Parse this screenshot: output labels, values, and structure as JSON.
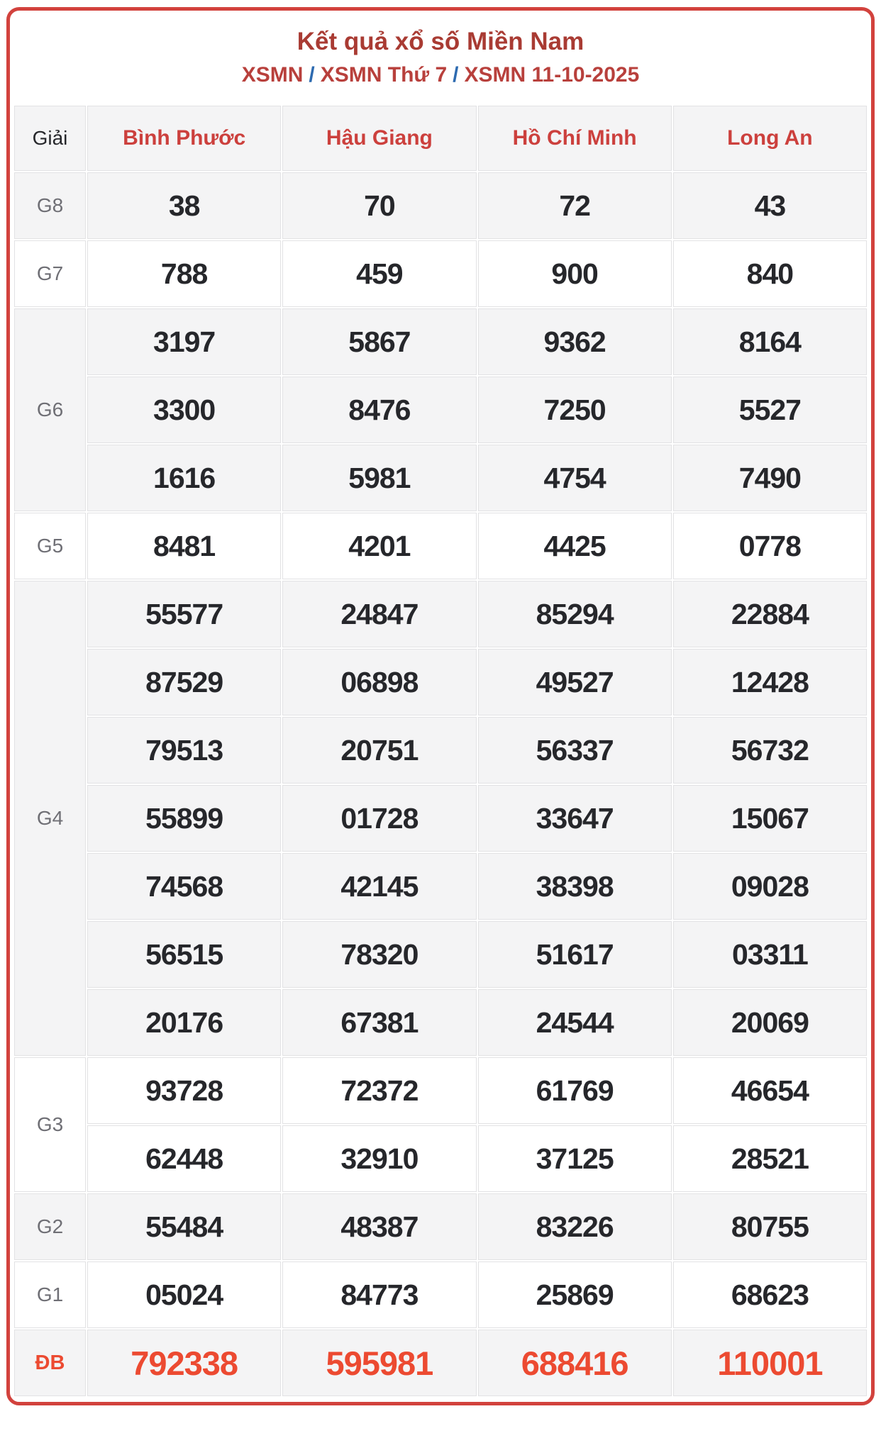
{
  "header": {
    "title": "Kết quả xổ số Miền Nam",
    "subtitle_parts": [
      "XSMN",
      "XSMN Thứ 7",
      "XSMN 11-10-2025"
    ],
    "subtitle_separator": "/"
  },
  "table": {
    "corner_label": "Giải",
    "columns": [
      "Bình Phước",
      "Hậu Giang",
      "Hồ Chí Minh",
      "Long An"
    ],
    "groups": [
      {
        "label": "G8",
        "shade": "gray",
        "special": false,
        "rows": [
          [
            "38",
            "70",
            "72",
            "43"
          ]
        ]
      },
      {
        "label": "G7",
        "shade": "white",
        "special": false,
        "rows": [
          [
            "788",
            "459",
            "900",
            "840"
          ]
        ]
      },
      {
        "label": "G6",
        "shade": "gray",
        "special": false,
        "rows": [
          [
            "3197",
            "5867",
            "9362",
            "8164"
          ],
          [
            "3300",
            "8476",
            "7250",
            "5527"
          ],
          [
            "1616",
            "5981",
            "4754",
            "7490"
          ]
        ]
      },
      {
        "label": "G5",
        "shade": "white",
        "special": false,
        "rows": [
          [
            "8481",
            "4201",
            "4425",
            "0778"
          ]
        ]
      },
      {
        "label": "G4",
        "shade": "gray",
        "special": false,
        "rows": [
          [
            "55577",
            "24847",
            "85294",
            "22884"
          ],
          [
            "87529",
            "06898",
            "49527",
            "12428"
          ],
          [
            "79513",
            "20751",
            "56337",
            "56732"
          ],
          [
            "55899",
            "01728",
            "33647",
            "15067"
          ],
          [
            "74568",
            "42145",
            "38398",
            "09028"
          ],
          [
            "56515",
            "78320",
            "51617",
            "03311"
          ],
          [
            "20176",
            "67381",
            "24544",
            "20069"
          ]
        ]
      },
      {
        "label": "G3",
        "shade": "white",
        "special": false,
        "rows": [
          [
            "93728",
            "72372",
            "61769",
            "46654"
          ],
          [
            "62448",
            "32910",
            "37125",
            "28521"
          ]
        ]
      },
      {
        "label": "G2",
        "shade": "gray",
        "special": false,
        "rows": [
          [
            "55484",
            "48387",
            "83226",
            "80755"
          ]
        ]
      },
      {
        "label": "G1",
        "shade": "white",
        "special": false,
        "rows": [
          [
            "05024",
            "84773",
            "25869",
            "68623"
          ]
        ]
      },
      {
        "label": "ĐB",
        "shade": "gray",
        "special": true,
        "rows": [
          [
            "792338",
            "595981",
            "688416",
            "110001"
          ]
        ]
      }
    ]
  },
  "colors": {
    "outer_border": "#d2423d",
    "title_red": "#a93b33",
    "subtitle_red": "#b8403c",
    "separator_blue": "#2d6ab0",
    "city_red": "#cc403d",
    "value_dark": "#26272b",
    "label_gray": "#6f6f75",
    "special_red": "#ec4a31",
    "row_gray": "#f4f4f5",
    "cell_border": "#e2e2e4"
  }
}
